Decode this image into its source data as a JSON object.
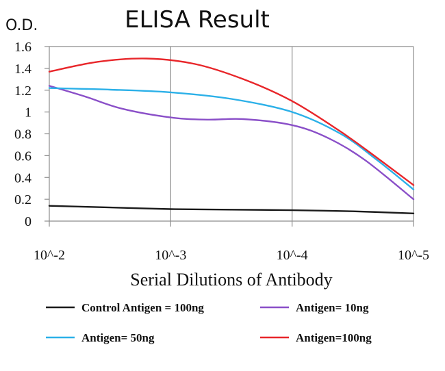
{
  "chart_data": {
    "type": "line",
    "title": "ELISA Result",
    "ylabel": "O.D.",
    "xlabel": "Serial Dilutions of Antibody",
    "categories": [
      "10^-2",
      "10^-3",
      "10^-4",
      "10^-5"
    ],
    "yticks": [
      "0",
      "0.2",
      "0.4",
      "0.6",
      "0.8",
      "1",
      "1.2",
      "1.4",
      "1.6"
    ],
    "ylim": [
      0,
      1.6
    ],
    "grid": true,
    "legend_position": "bottom",
    "series": [
      {
        "name": "Control Antigen = 100ng",
        "color": "#1a1a1a",
        "points": [
          [
            0,
            0.14
          ],
          [
            0.5,
            0.125
          ],
          [
            1,
            0.11
          ],
          [
            1.5,
            0.105
          ],
          [
            2,
            0.1
          ],
          [
            2.5,
            0.09
          ],
          [
            3,
            0.07
          ]
        ]
      },
      {
        "name": "Antigen= 10ng",
        "color": "#8a4fc8",
        "points": [
          [
            0,
            1.24
          ],
          [
            0.3,
            1.14
          ],
          [
            0.6,
            1.03
          ],
          [
            1,
            0.95
          ],
          [
            1.3,
            0.93
          ],
          [
            1.6,
            0.935
          ],
          [
            2,
            0.88
          ],
          [
            2.3,
            0.76
          ],
          [
            2.6,
            0.56
          ],
          [
            3,
            0.2
          ]
        ]
      },
      {
        "name": "Antigen= 50ng",
        "color": "#2bb0e8",
        "points": [
          [
            0,
            1.22
          ],
          [
            0.5,
            1.205
          ],
          [
            1,
            1.18
          ],
          [
            1.5,
            1.12
          ],
          [
            2,
            1.0
          ],
          [
            2.4,
            0.8
          ],
          [
            2.7,
            0.56
          ],
          [
            3,
            0.29
          ]
        ]
      },
      {
        "name": "Antigen=100ng",
        "color": "#e8262a",
        "points": [
          [
            0,
            1.37
          ],
          [
            0.4,
            1.46
          ],
          [
            0.8,
            1.49
          ],
          [
            1.2,
            1.44
          ],
          [
            1.6,
            1.3
          ],
          [
            2,
            1.1
          ],
          [
            2.4,
            0.82
          ],
          [
            2.7,
            0.58
          ],
          [
            3,
            0.33
          ]
        ]
      }
    ]
  }
}
